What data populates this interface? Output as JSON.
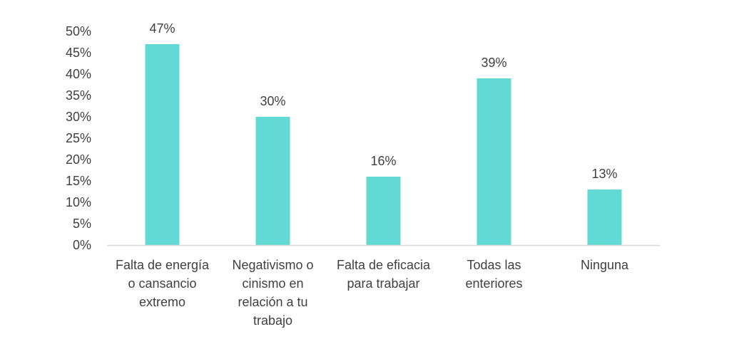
{
  "chart_data": {
    "type": "bar",
    "categories": [
      [
        "Falta de energía",
        "o cansancio",
        "extremo"
      ],
      [
        "Negativismo o",
        "cinismo en",
        "relación a tu",
        "trabajo"
      ],
      [
        "Falta de eficacia",
        "para trabajar"
      ],
      [
        "Todas las",
        "enteriores"
      ],
      [
        "Ninguna"
      ]
    ],
    "values": [
      47,
      30,
      16,
      39,
      13
    ],
    "data_labels": [
      "47%",
      "30%",
      "16%",
      "39%",
      "13%"
    ],
    "ylim": [
      0,
      50
    ],
    "yticks": [
      0,
      5,
      10,
      15,
      20,
      25,
      30,
      35,
      40,
      45,
      50
    ],
    "ytick_labels": [
      "0%",
      "5%",
      "10%",
      "15%",
      "20%",
      "25%",
      "30%",
      "35%",
      "40%",
      "45%",
      "50%"
    ],
    "title": "",
    "xlabel": "",
    "ylabel": "",
    "grid": false,
    "legend": "none",
    "colors": {
      "bar": "#62D9D2",
      "axis": "#D9D9D9",
      "text": "#404040"
    }
  }
}
